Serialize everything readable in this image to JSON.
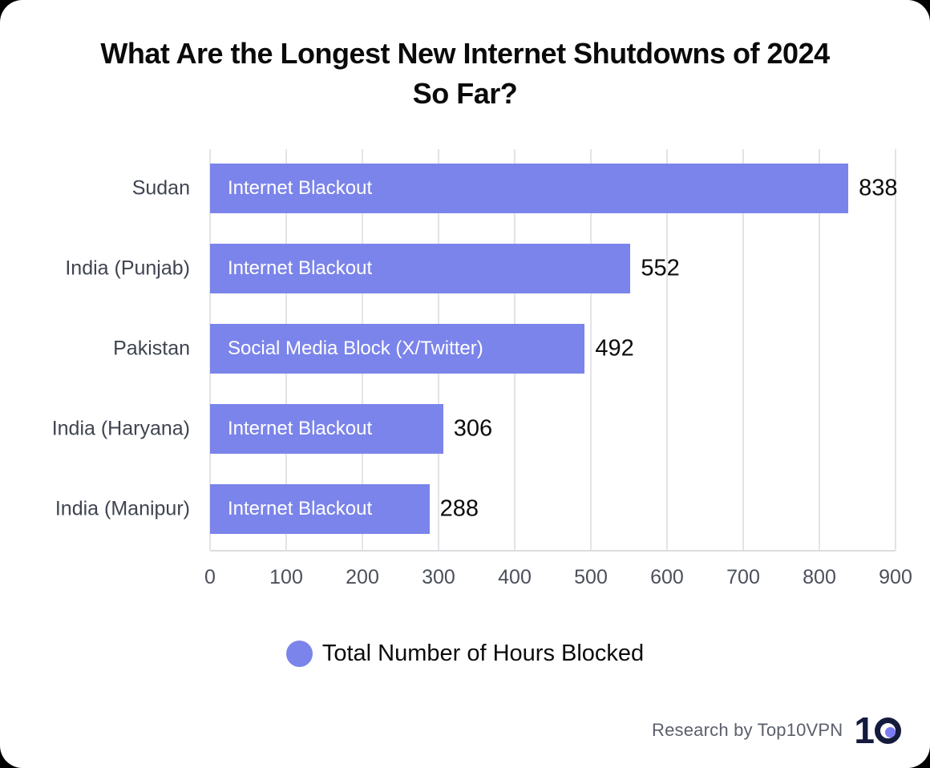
{
  "title": {
    "line1": "What Are the Longest New Internet Shutdowns of 2024",
    "line2": "So Far?"
  },
  "chart_data": {
    "type": "bar",
    "orientation": "horizontal",
    "title": "What Are the Longest New Internet Shutdowns of 2024 So Far?",
    "categories": [
      "Sudan",
      "India (Punjab)",
      "Pakistan",
      "India (Haryana)",
      "India (Manipur)"
    ],
    "values": [
      838,
      552,
      492,
      306,
      288
    ],
    "bar_annotations": [
      "Internet Blackout",
      "Internet Blackout",
      "Social Media Block (X/Twitter)",
      "Internet Blackout",
      "Internet Blackout"
    ],
    "series_name": "Total Number of Hours Blocked",
    "xlabel": "",
    "ylabel": "",
    "xlim": [
      0,
      900
    ],
    "xticks": [
      0,
      100,
      200,
      300,
      400,
      500,
      600,
      700,
      800,
      900
    ],
    "grid": "vertical",
    "legend_position": "bottom"
  },
  "legend": {
    "label": "Total Number of Hours Blocked"
  },
  "footer": {
    "credit": "Research by Top10VPN",
    "logo_one": "1"
  },
  "colors": {
    "accent": "#7B84EA",
    "grid": "#E4E4E7",
    "axis": "#DCDCE0",
    "category_label": "#3F4450",
    "tick_label": "#4B505B",
    "value_label": "#0C0C0E",
    "footer_text": "#5A5F6B",
    "logo_navy": "#141B3D",
    "logo_dot": "#7B7BF2",
    "card_background": "#FFFFFF"
  }
}
